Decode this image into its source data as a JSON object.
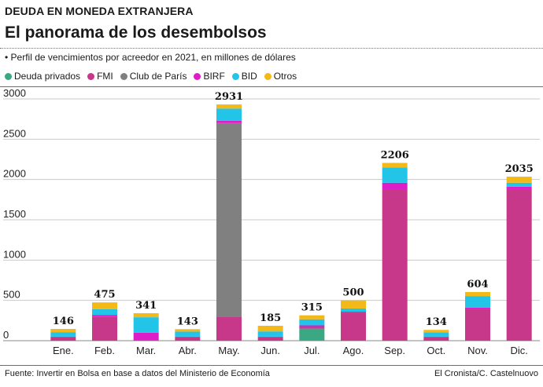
{
  "header": {
    "kicker": "DEUDA EN MONEDA EXTRANJERA",
    "title": "El panorama de los desembolsos",
    "subtitle": "• Perfil de vencimientos por acreedor en 2021, en millones de dólares"
  },
  "footer": {
    "source": "Fuente: Invertir en Bolsa en base a datos del Ministerio de Economía",
    "credit": "El Cronista/C. Castelnuovo"
  },
  "chart_data": {
    "type": "bar",
    "stacked": true,
    "categories": [
      "Ene.",
      "Feb.",
      "Mar.",
      "Abr.",
      "May.",
      "Jun.",
      "Jul.",
      "Ago.",
      "Sep.",
      "Oct.",
      "Nov.",
      "Dic."
    ],
    "totals": [
      146,
      475,
      341,
      143,
      2931,
      185,
      315,
      500,
      2206,
      134,
      604,
      2035
    ],
    "series": [
      {
        "name": "Deuda privados",
        "color": "#3aa882",
        "values": [
          0,
          0,
          0,
          0,
          0,
          0,
          150,
          0,
          0,
          0,
          0,
          0
        ]
      },
      {
        "name": "FMI",
        "color": "#c8388a",
        "values": [
          40,
          300,
          10,
          40,
          300,
          40,
          20,
          350,
          1880,
          40,
          390,
          1880
        ]
      },
      {
        "name": "Club de París",
        "color": "#808080",
        "values": [
          0,
          0,
          0,
          0,
          2400,
          0,
          0,
          0,
          0,
          0,
          0,
          0
        ]
      },
      {
        "name": "BIRF",
        "color": "#dd1ec8",
        "values": [
          10,
          20,
          90,
          10,
          30,
          10,
          20,
          10,
          80,
          10,
          20,
          30
        ]
      },
      {
        "name": "BID",
        "color": "#22c4e8",
        "values": [
          56,
          70,
          191,
          63,
          150,
          65,
          75,
          40,
          190,
          54,
          144,
          50
        ]
      },
      {
        "name": "Otros",
        "color": "#f2b919",
        "values": [
          40,
          85,
          50,
          30,
          51,
          70,
          50,
          100,
          56,
          30,
          50,
          75
        ]
      }
    ],
    "ylim": [
      0,
      3000
    ],
    "yticks": [
      0,
      500,
      1000,
      1500,
      2000,
      2500,
      3000
    ],
    "grid": true,
    "legend_position": "top-left",
    "xlabel": "",
    "ylabel": ""
  }
}
